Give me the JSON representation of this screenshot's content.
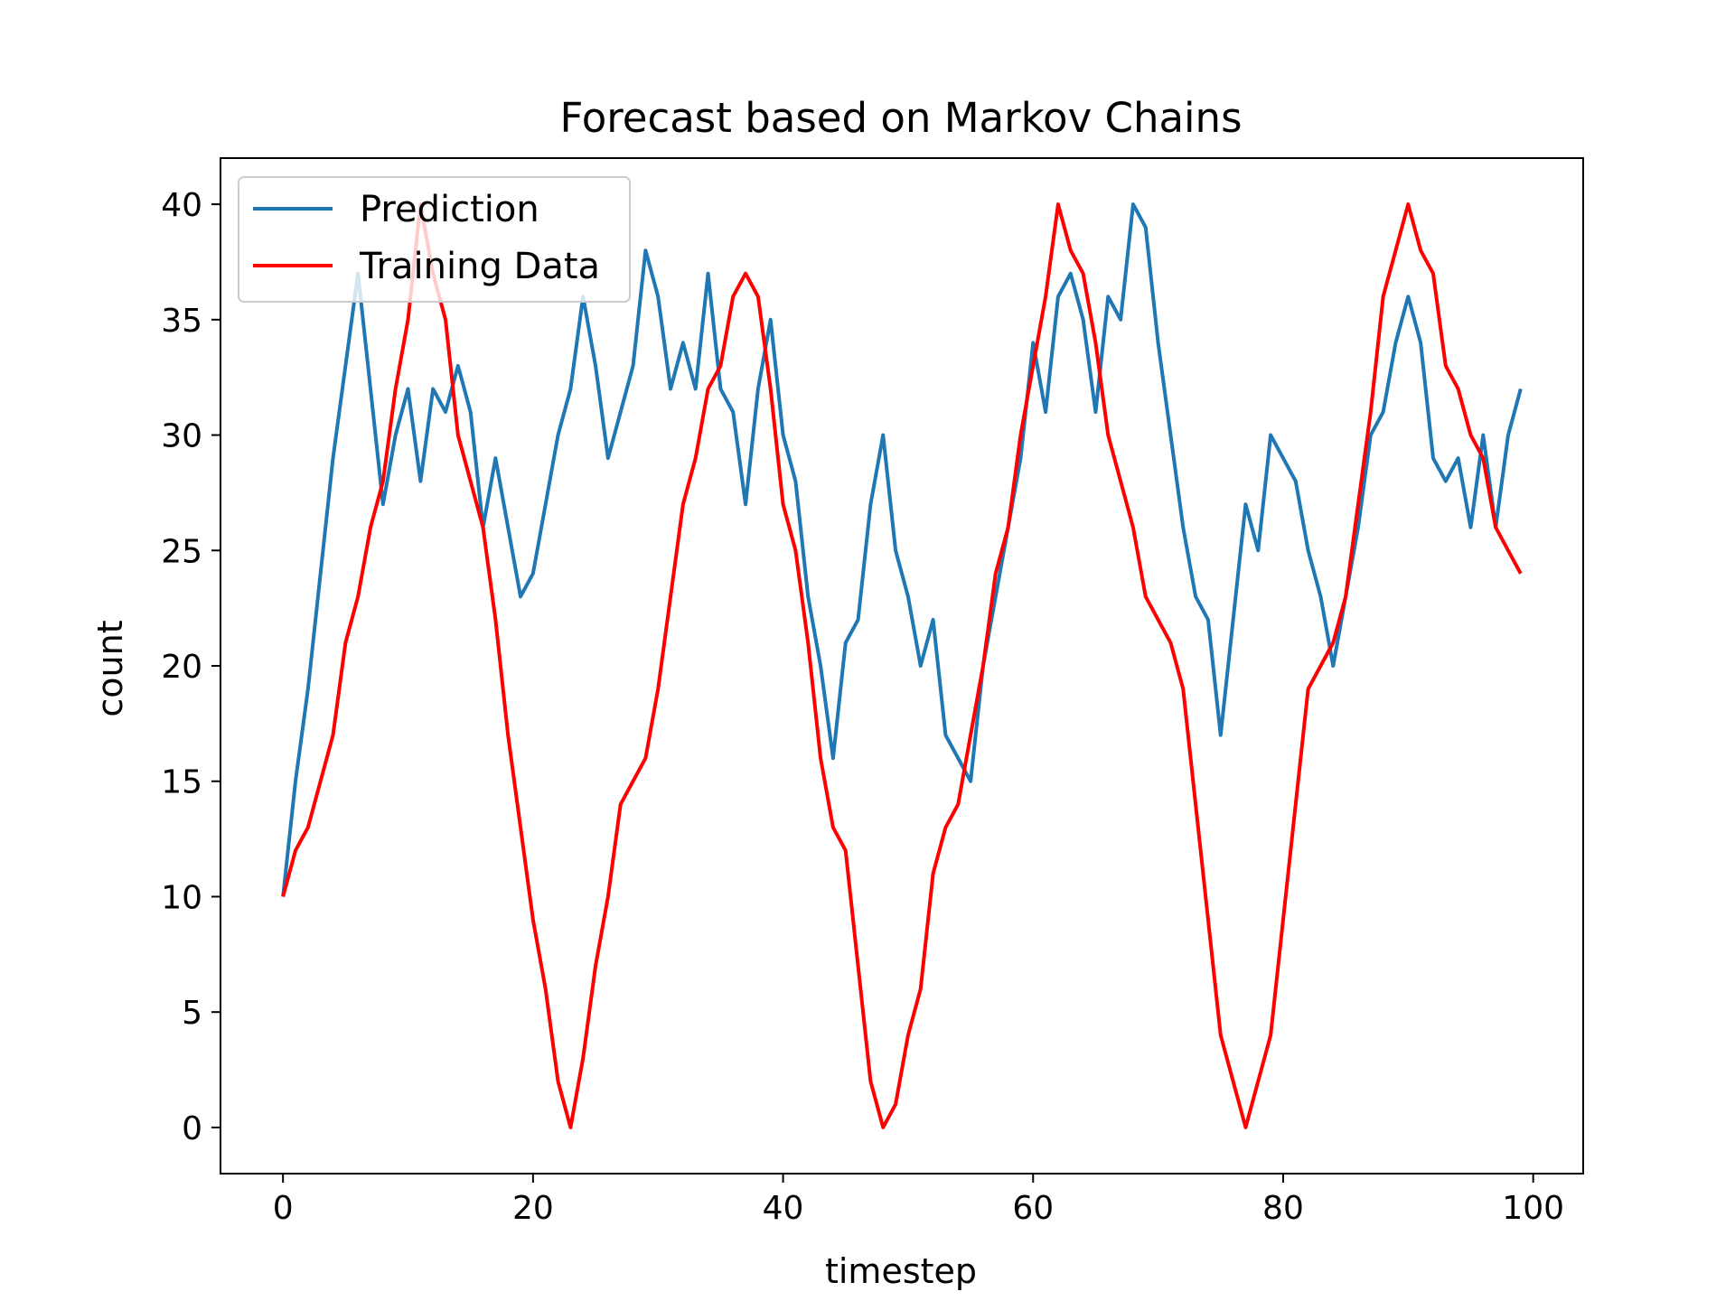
{
  "chart_data": {
    "type": "line",
    "title": "Forecast based on Markov Chains",
    "xlabel": "timestep",
    "ylabel": "count",
    "xlim": [
      -5,
      104
    ],
    "ylim": [
      -2,
      42
    ],
    "xticks": [
      0,
      20,
      40,
      60,
      80,
      100
    ],
    "yticks": [
      0,
      5,
      10,
      15,
      20,
      25,
      30,
      35,
      40
    ],
    "grid": false,
    "legend": "top-left",
    "series": [
      {
        "name": "Prediction",
        "color": "#1f77b4",
        "x": [
          0,
          1,
          2,
          3,
          4,
          5,
          6,
          7,
          8,
          9,
          10,
          11,
          12,
          13,
          14,
          15,
          16,
          17,
          18,
          19,
          20,
          21,
          22,
          23,
          24,
          25,
          26,
          27,
          28,
          29,
          30,
          31,
          32,
          33,
          34,
          35,
          36,
          37,
          38,
          39,
          40,
          41,
          42,
          43,
          44,
          45,
          46,
          47,
          48,
          49,
          50,
          51,
          52,
          53,
          54,
          55,
          56,
          57,
          58,
          59,
          60,
          61,
          62,
          63,
          64,
          65,
          66,
          67,
          68,
          69,
          70,
          71,
          72,
          73,
          74,
          75,
          76,
          77,
          78,
          79,
          80,
          81,
          82,
          83,
          84,
          85,
          86,
          87,
          88,
          89,
          90,
          91,
          92,
          93,
          94,
          95,
          96,
          97,
          98,
          99
        ],
        "values": [
          10,
          15,
          19,
          24,
          29,
          33,
          37,
          32,
          27,
          30,
          32,
          28,
          32,
          31,
          33,
          31,
          26,
          29,
          26,
          23,
          24,
          27,
          30,
          32,
          36,
          33,
          29,
          31,
          33,
          38,
          36,
          32,
          34,
          32,
          37,
          32,
          31,
          27,
          32,
          35,
          30,
          28,
          23,
          20,
          16,
          21,
          22,
          27,
          30,
          25,
          23,
          20,
          22,
          17,
          16,
          15,
          20,
          23,
          26,
          29,
          34,
          31,
          36,
          37,
          35,
          31,
          36,
          35,
          40,
          39,
          34,
          30,
          26,
          23,
          22,
          17,
          22,
          27,
          25,
          30,
          29,
          28,
          25,
          23,
          20,
          23,
          26,
          30,
          31,
          34,
          36,
          34,
          29,
          28,
          29,
          26,
          30,
          26,
          30,
          32
        ]
      },
      {
        "name": "Training Data",
        "color": "#ff0000",
        "x": [
          0,
          1,
          2,
          3,
          4,
          5,
          6,
          7,
          8,
          9,
          10,
          11,
          12,
          13,
          14,
          15,
          16,
          17,
          18,
          19,
          20,
          21,
          22,
          23,
          24,
          25,
          26,
          27,
          28,
          29,
          30,
          31,
          32,
          33,
          34,
          35,
          36,
          37,
          38,
          39,
          40,
          41,
          42,
          43,
          44,
          45,
          46,
          47,
          48,
          49,
          50,
          51,
          52,
          53,
          54,
          55,
          56,
          57,
          58,
          59,
          60,
          61,
          62,
          63,
          64,
          65,
          66,
          67,
          68,
          69,
          70,
          71,
          72,
          73,
          74,
          75,
          76,
          77,
          78,
          79,
          80,
          81,
          82,
          83,
          84,
          85,
          86,
          87,
          88,
          89,
          90,
          91,
          92,
          93,
          94,
          95,
          96,
          97,
          98,
          99
        ],
        "values": [
          10,
          12,
          13,
          15,
          17,
          21,
          23,
          26,
          28,
          32,
          35,
          40,
          37,
          35,
          30,
          28,
          26,
          22,
          17,
          13,
          9,
          6,
          2,
          0,
          3,
          7,
          10,
          14,
          15,
          16,
          19,
          23,
          27,
          29,
          32,
          33,
          36,
          37,
          36,
          32,
          27,
          25,
          21,
          16,
          13,
          12,
          7,
          2,
          0,
          1,
          4,
          6,
          11,
          13,
          14,
          17,
          20,
          24,
          26,
          30,
          33,
          36,
          40,
          38,
          37,
          34,
          30,
          28,
          26,
          23,
          22,
          21,
          19,
          14,
          9,
          4,
          2,
          0,
          2,
          4,
          9,
          14,
          19,
          20,
          21,
          23,
          27,
          31,
          36,
          38,
          40,
          38,
          37,
          33,
          32,
          30,
          29,
          26,
          25,
          24
        ]
      }
    ]
  }
}
